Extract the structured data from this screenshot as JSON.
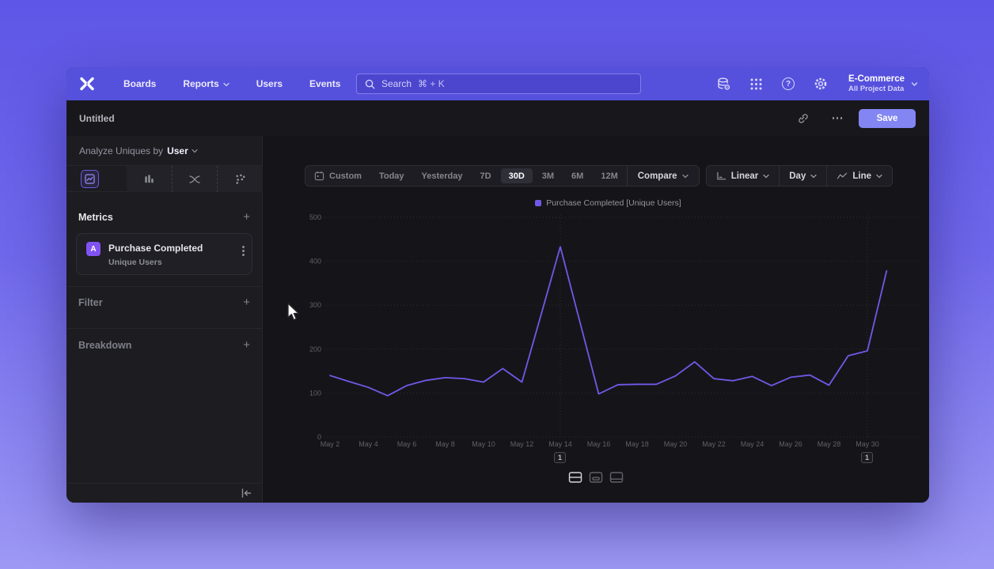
{
  "nav": {
    "items": [
      {
        "label": "Boards",
        "chevron": false
      },
      {
        "label": "Reports",
        "chevron": true
      },
      {
        "label": "Users",
        "chevron": false
      },
      {
        "label": "Events",
        "chevron": false
      }
    ],
    "search": {
      "label": "Search",
      "shortcut": "⌘ + K"
    },
    "project": {
      "name": "E-Commerce",
      "scope": "All Project Data"
    }
  },
  "header": {
    "title": "Untitled",
    "save": "Save"
  },
  "sidebar": {
    "analyze_prefix": "Analyze Uniques by",
    "analyze_entity": "User",
    "metrics_title": "Metrics",
    "metric": {
      "badge": "A",
      "name": "Purchase Completed",
      "measure": "Unique Users"
    },
    "filter_title": "Filter",
    "breakdown_title": "Breakdown",
    "add_symbol": "+"
  },
  "toolbar": {
    "ranges": [
      "Custom",
      "Today",
      "Yesterday",
      "7D",
      "30D",
      "3M",
      "6M",
      "12M"
    ],
    "selected_range": "30D",
    "compare": "Compare",
    "scale": "Linear",
    "interval": "Day",
    "chart_type": "Line"
  },
  "chart_data": {
    "type": "line",
    "legend_position": "top-center",
    "series": [
      {
        "name": "Purchase Completed [Unique Users]",
        "color": "#7059e8",
        "x": [
          "May 2",
          "May 3",
          "May 4",
          "May 5",
          "May 6",
          "May 7",
          "May 8",
          "May 9",
          "May 10",
          "May 11",
          "May 12",
          "May 13",
          "May 14",
          "May 15",
          "May 16",
          "May 17",
          "May 18",
          "May 19",
          "May 20",
          "May 21",
          "May 22",
          "May 23",
          "May 24",
          "May 25",
          "May 26",
          "May 27",
          "May 28",
          "May 29",
          "May 30",
          "May 31"
        ],
        "values": [
          140,
          126,
          113,
          94,
          117,
          129,
          135,
          133,
          125,
          156,
          125,
          279,
          433,
          265,
          98,
          119,
          120,
          120,
          139,
          171,
          133,
          128,
          138,
          117,
          136,
          141,
          118,
          185,
          196,
          378
        ]
      }
    ],
    "ylim": [
      0,
      500
    ],
    "yticks": [
      0,
      100,
      200,
      300,
      400,
      500
    ],
    "xticks": [
      "May 2",
      "May 4",
      "May 6",
      "May 8",
      "May 10",
      "May 12",
      "May 14",
      "May 16",
      "May 18",
      "May 20",
      "May 22",
      "May 24",
      "May 26",
      "May 28",
      "May 30"
    ],
    "grid": {
      "horizontal": true,
      "vertical_at": [
        "May 14",
        "May 30"
      ],
      "style": "dotted"
    }
  },
  "annotations": [
    {
      "label": "1",
      "x": "May 14"
    },
    {
      "label": "1",
      "x": "May 30"
    }
  ],
  "colors": {
    "nav": "#5551dd",
    "accent": "#7059e8",
    "save_button": "#8285f2",
    "window_bg": "#18181c"
  }
}
